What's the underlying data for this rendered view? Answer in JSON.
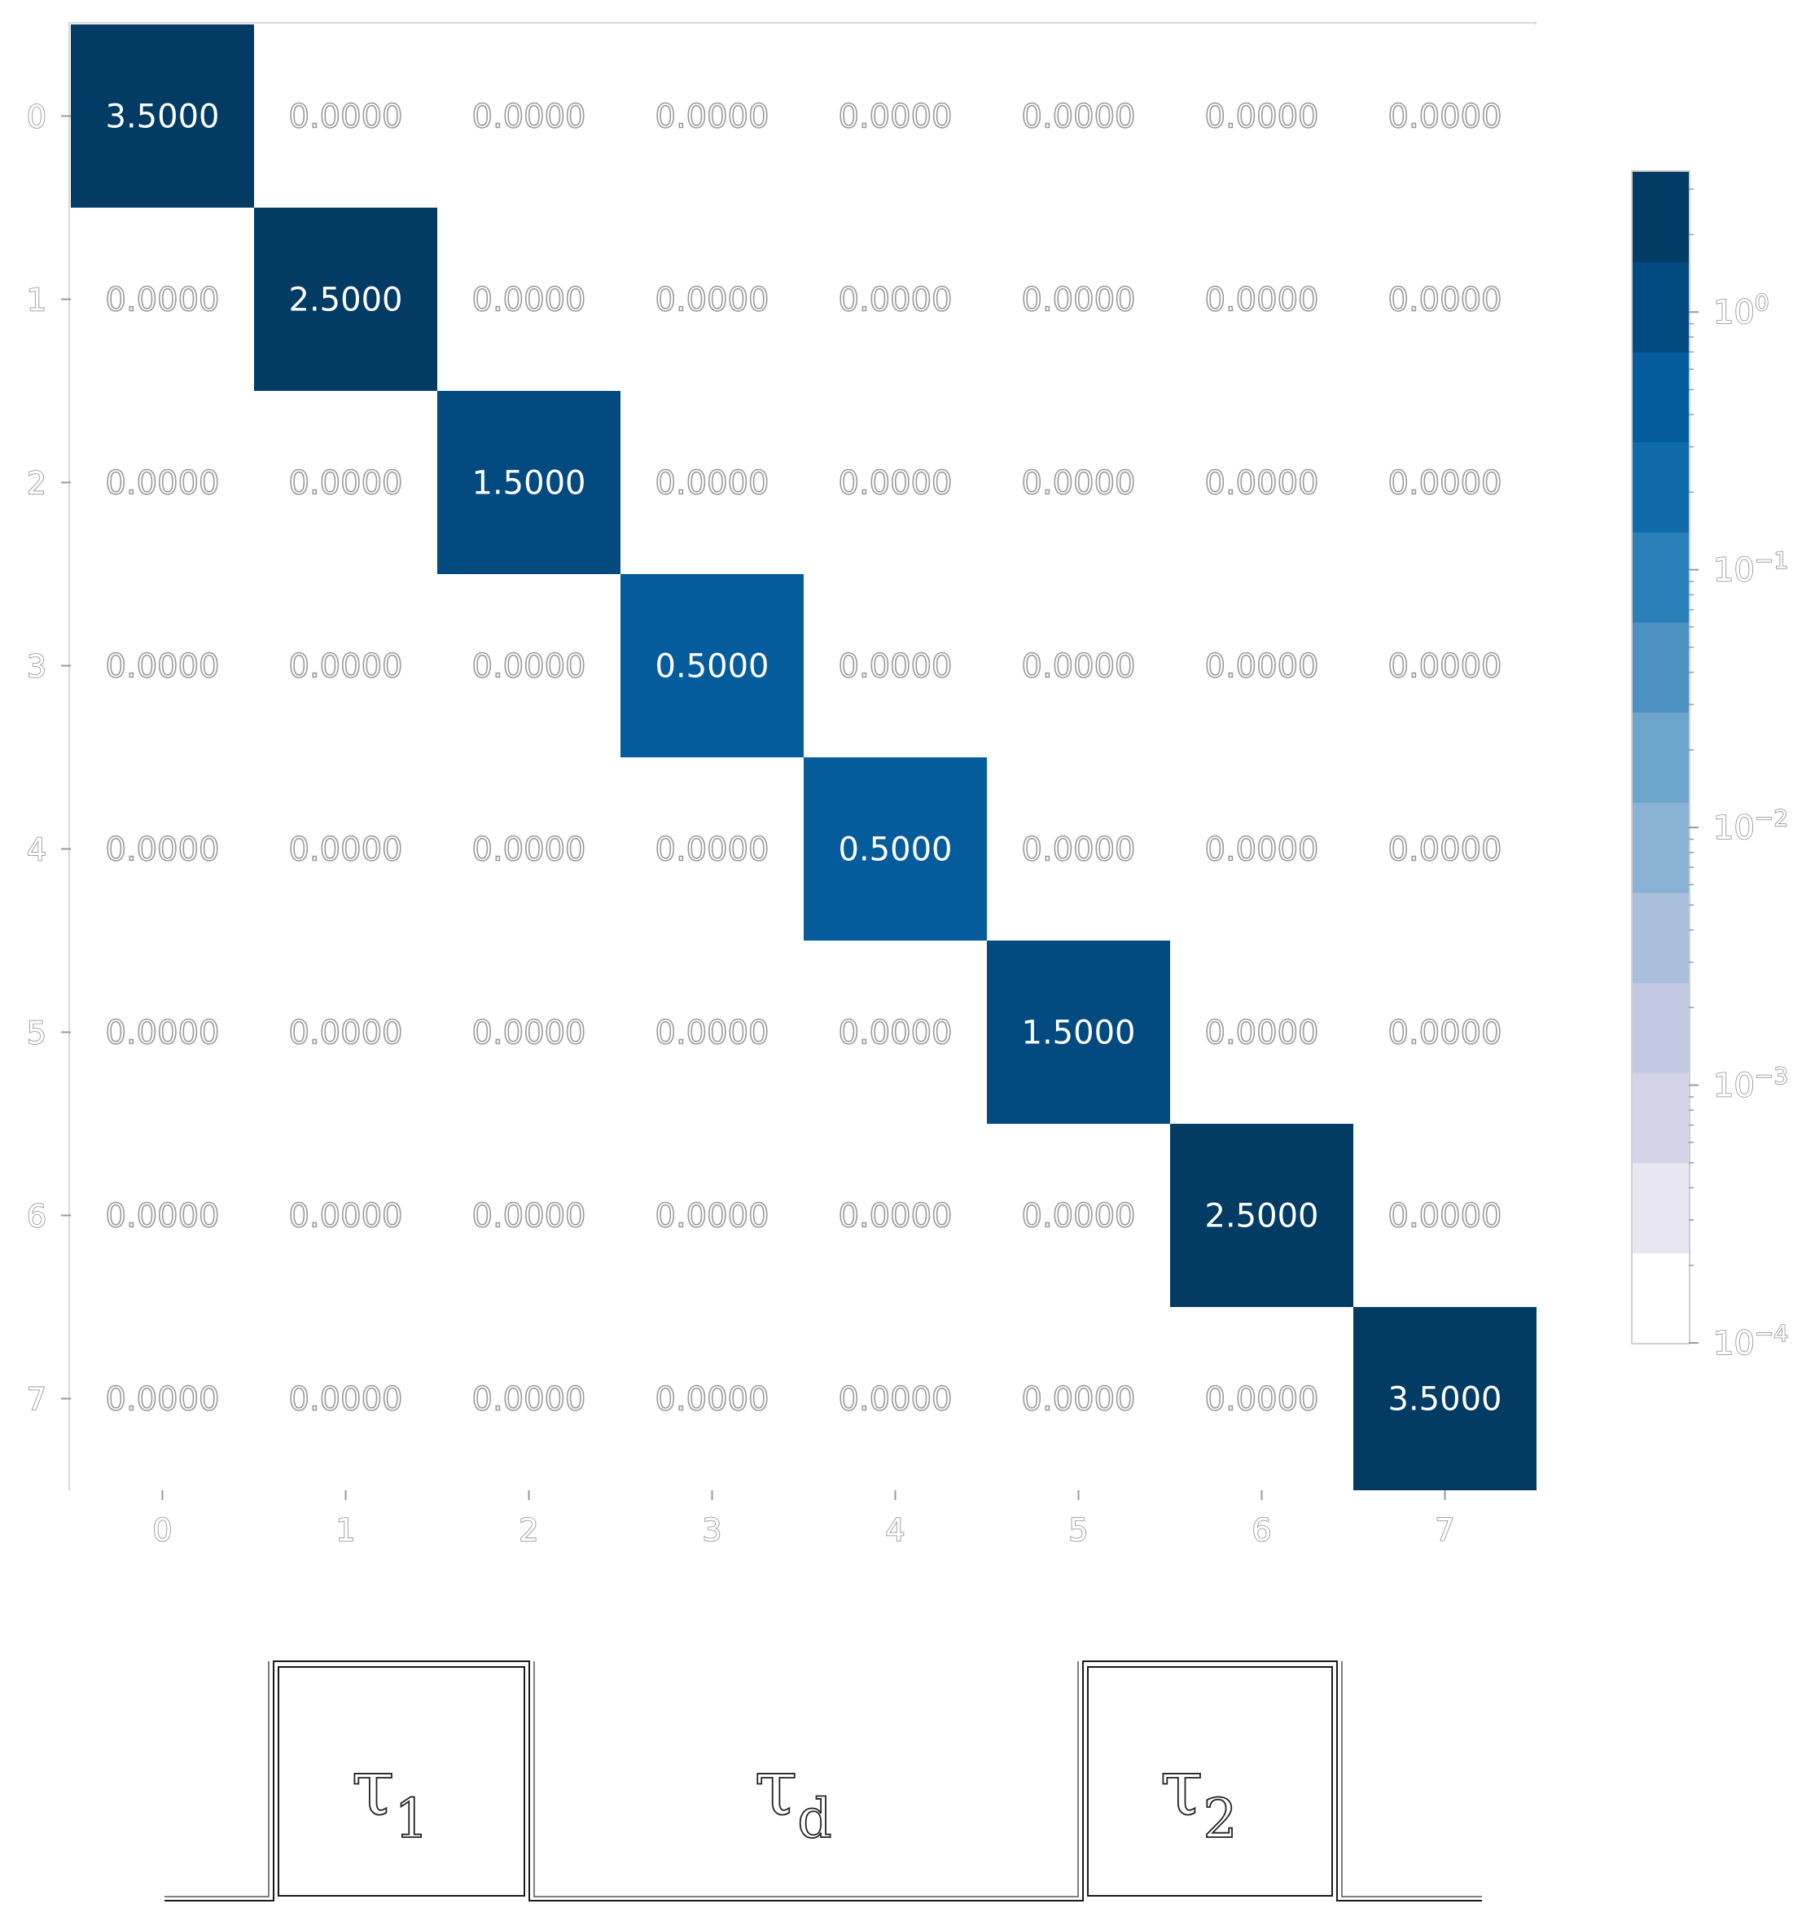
{
  "chart_data": {
    "type": "heatmap",
    "rows": [
      "0",
      "1",
      "2",
      "3",
      "4",
      "5",
      "6",
      "7"
    ],
    "columns": [
      "0",
      "1",
      "2",
      "3",
      "4",
      "5",
      "6",
      "7"
    ],
    "values": [
      [
        3.5,
        0,
        0,
        0,
        0,
        0,
        0,
        0
      ],
      [
        0,
        2.5,
        0,
        0,
        0,
        0,
        0,
        0
      ],
      [
        0,
        0,
        1.5,
        0,
        0,
        0,
        0,
        0
      ],
      [
        0,
        0,
        0,
        0.5,
        0,
        0,
        0,
        0
      ],
      [
        0,
        0,
        0,
        0,
        0.5,
        0,
        0,
        0
      ],
      [
        0,
        0,
        0,
        0,
        0,
        1.5,
        0,
        0
      ],
      [
        0,
        0,
        0,
        0,
        0,
        0,
        2.5,
        0
      ],
      [
        0,
        0,
        0,
        0,
        0,
        0,
        0,
        3.5
      ]
    ],
    "cell_labels": [
      [
        "3.5000",
        "0.0000",
        "0.0000",
        "0.0000",
        "0.0000",
        "0.0000",
        "0.0000",
        "0.0000"
      ],
      [
        "0.0000",
        "2.5000",
        "0.0000",
        "0.0000",
        "0.0000",
        "0.0000",
        "0.0000",
        "0.0000"
      ],
      [
        "0.0000",
        "0.0000",
        "1.5000",
        "0.0000",
        "0.0000",
        "0.0000",
        "0.0000",
        "0.0000"
      ],
      [
        "0.0000",
        "0.0000",
        "0.0000",
        "0.5000",
        "0.0000",
        "0.0000",
        "0.0000",
        "0.0000"
      ],
      [
        "0.0000",
        "0.0000",
        "0.0000",
        "0.0000",
        "0.5000",
        "0.0000",
        "0.0000",
        "0.0000"
      ],
      [
        "0.0000",
        "0.0000",
        "0.0000",
        "0.0000",
        "0.0000",
        "1.5000",
        "0.0000",
        "0.0000"
      ],
      [
        "0.0000",
        "0.0000",
        "0.0000",
        "0.0000",
        "0.0000",
        "0.0000",
        "2.5000",
        "0.0000"
      ],
      [
        "0.0000",
        "0.0000",
        "0.0000",
        "0.0000",
        "0.0000",
        "0.0000",
        "0.0000",
        "3.5000"
      ]
    ],
    "color_scale": "log",
    "vmin": 0.0001,
    "vmax": 3.5,
    "colorbar": {
      "ticks": [
        1,
        0.1,
        0.01,
        0.001,
        0.0001
      ],
      "tick_bases": [
        "10",
        "10",
        "10",
        "10",
        "10"
      ],
      "tick_exponents": [
        "0",
        "−1",
        "−2",
        "−3",
        "−4"
      ]
    },
    "colormap": [
      "#ffffff",
      "#e8e6f1",
      "#d4d4e8",
      "#c2c8e1",
      "#a9bfdb",
      "#8ab2d5",
      "#6ea5cd",
      "#4b92c2",
      "#2b7fb8",
      "#0f6aaa",
      "#055c9c",
      "#034a80",
      "#023b63"
    ],
    "grid": false
  },
  "pulse_diagram": {
    "pulse_labels": [
      {
        "symbol": "τ",
        "subscript": "1"
      },
      {
        "symbol": "τ",
        "subscript": "d"
      },
      {
        "symbol": "τ",
        "subscript": "2"
      }
    ]
  }
}
